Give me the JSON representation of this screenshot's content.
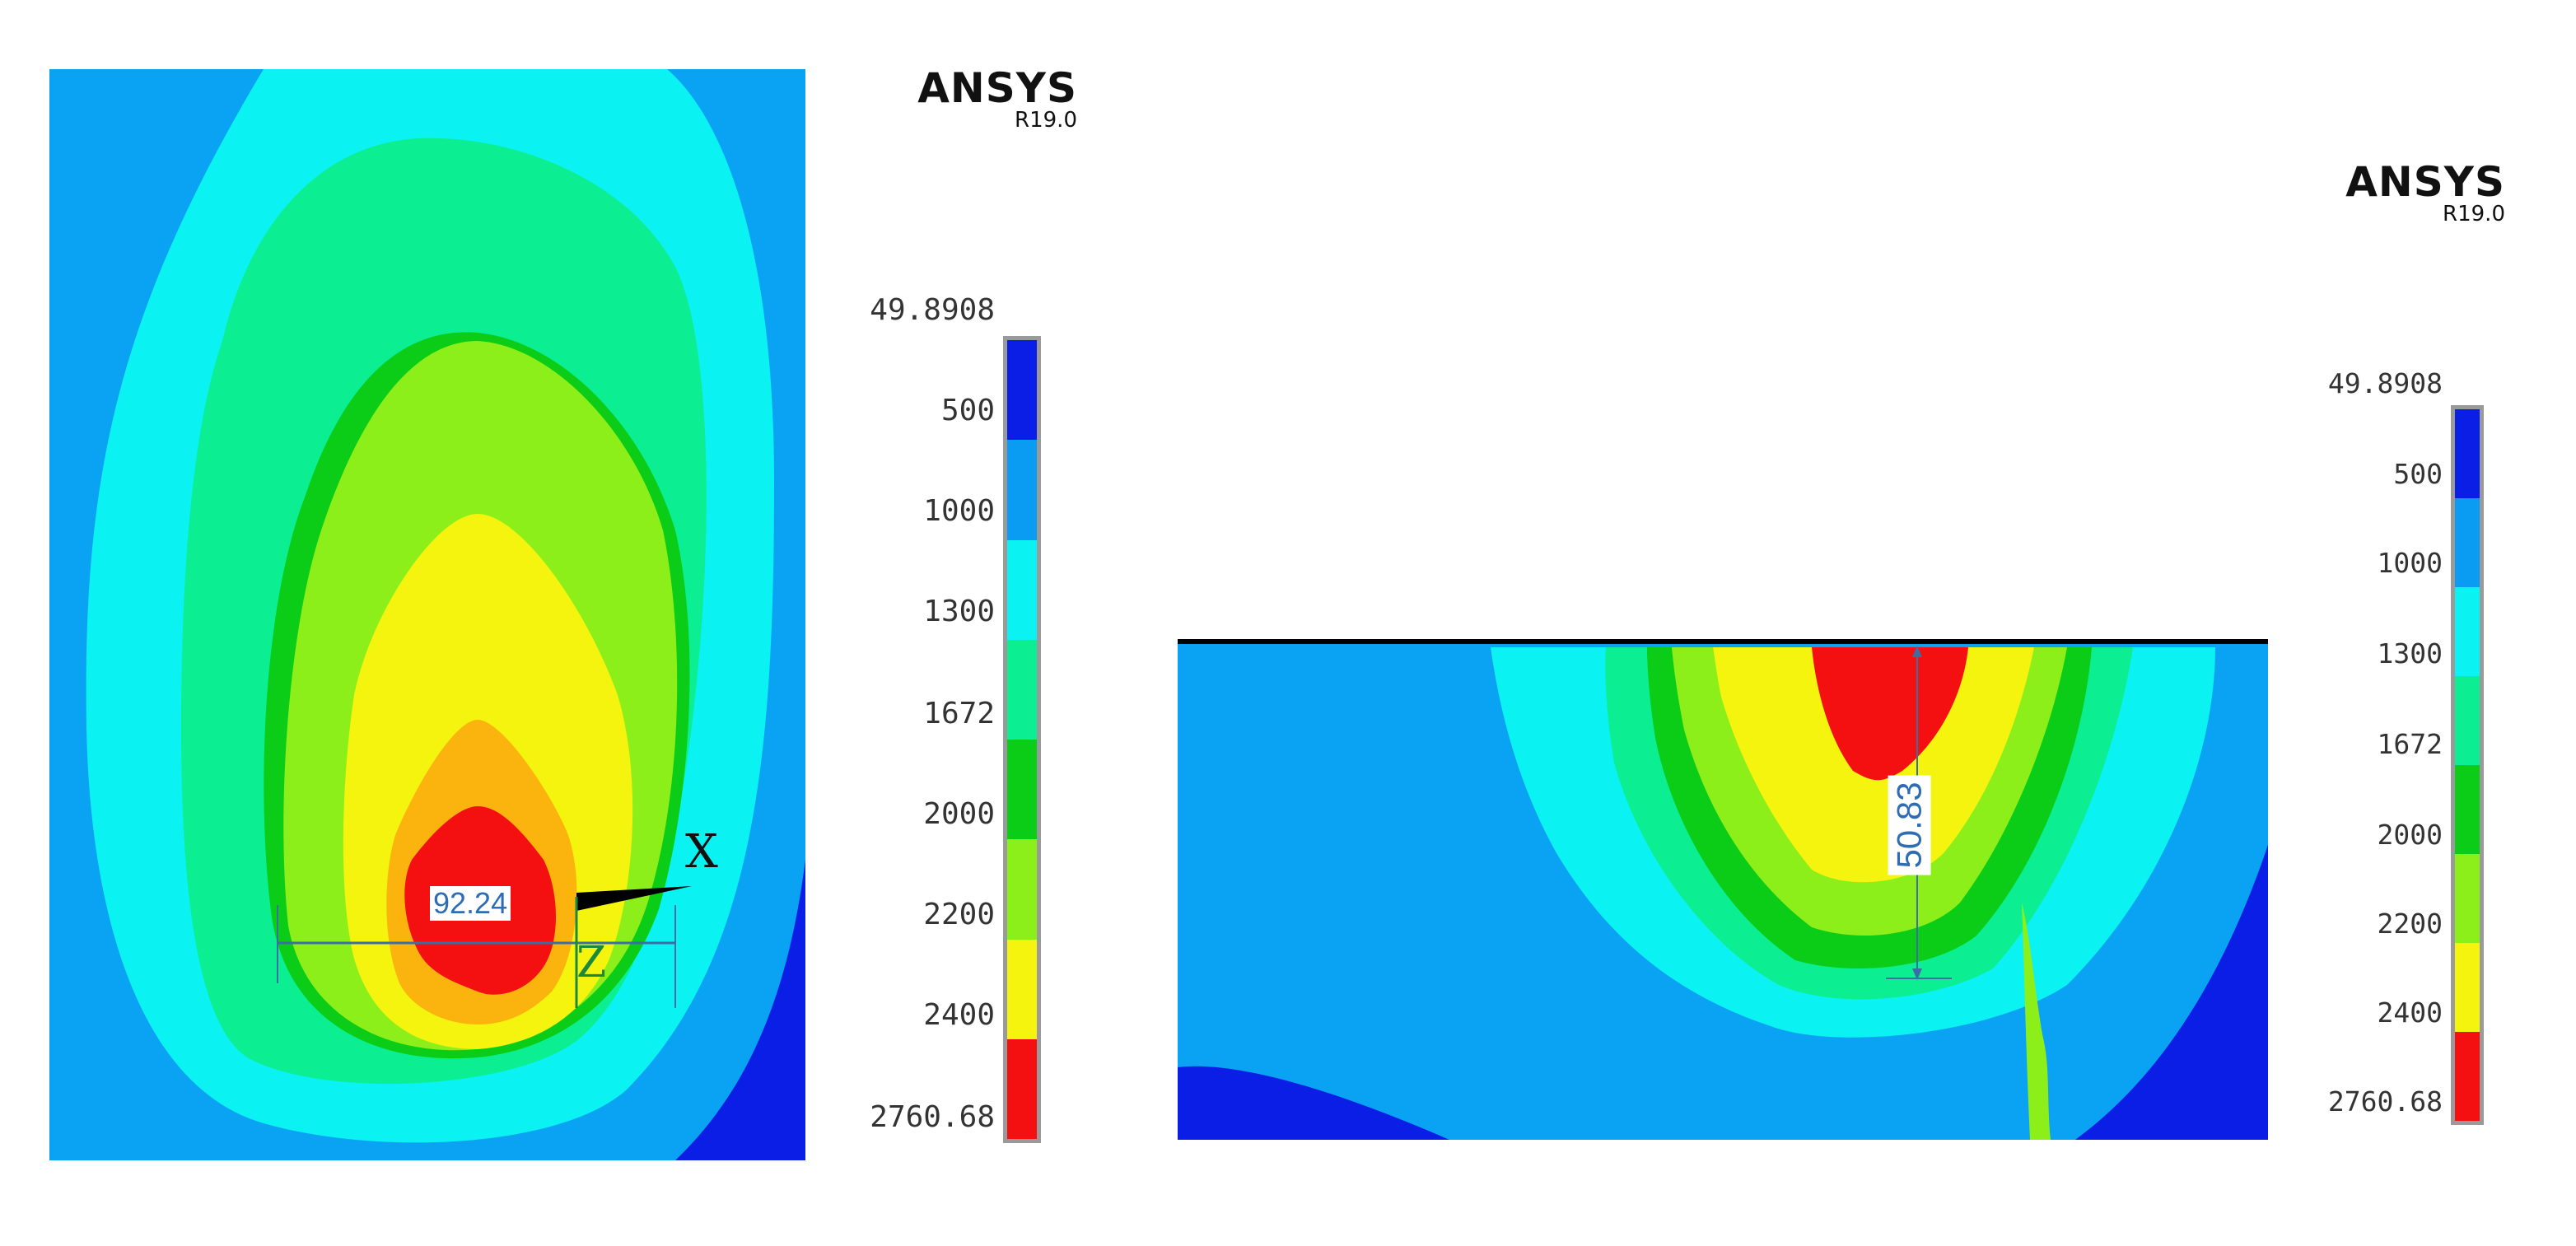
{
  "left_panel": {
    "brand": {
      "name": "ANSYS",
      "version": "R19.0"
    },
    "dimension": "92.24",
    "axis_labels": {
      "x": "X",
      "z": "Z"
    }
  },
  "right_panel": {
    "brand": {
      "name": "ANSYS",
      "version": "R19.0"
    },
    "dimension": "50.83"
  },
  "legend": {
    "ticks": [
      "49.8908",
      "500",
      "1000",
      "1300",
      "1672",
      "2000",
      "2200",
      "2400",
      "2760.68"
    ],
    "band_colors": [
      "#0a1ee6",
      "#0a9cf2",
      "#0bf2f2",
      "#0bef92",
      "#0bcc16",
      "#8def19",
      "#f4f40e",
      "#f41010"
    ]
  },
  "colors": {
    "background_blue": "#0aa2f2",
    "dark_blue": "#0a1ee6",
    "cyan": "#0bf2f2",
    "aqua_green": "#0bef92",
    "green": "#0bcc16",
    "light_green": "#8def19",
    "yellow": "#f4f40e",
    "orange": "#fbb40e",
    "red": "#f41010",
    "dimension_blue": "#2e6db4"
  }
}
